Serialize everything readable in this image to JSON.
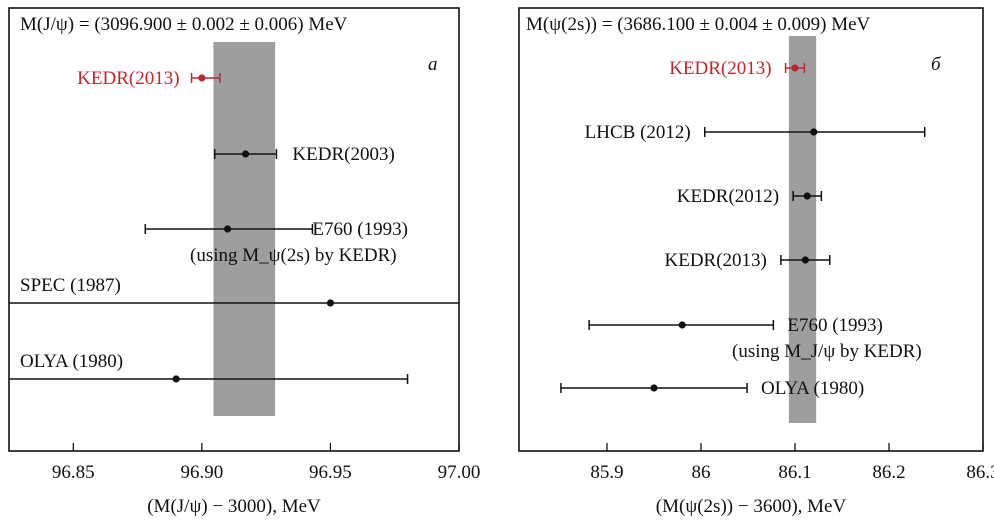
{
  "chart_data": [
    {
      "type": "scatter",
      "panel_letter": "a",
      "title": "M(J/ψ) = (3096.900 ± 0.002 ± 0.006) MeV",
      "xlabel": "(M(J/ψ) − 3000), MeV",
      "ylabel": "",
      "xlim": [
        96.825,
        97.0
      ],
      "ticks": [
        {
          "v": 96.85,
          "label": "96.85"
        },
        {
          "v": 96.9,
          "label": "96.90"
        },
        {
          "v": 96.95,
          "label": "96.95"
        },
        {
          "v": 97.0,
          "label": "97.00"
        }
      ],
      "band": {
        "from": 96.9045,
        "to": 96.9285
      },
      "points": [
        {
          "label": "KEDR(2013)",
          "x": 96.9,
          "err": [
            96.896,
            96.907
          ],
          "color": "#c0262d",
          "label_side": "left"
        },
        {
          "label": "KEDR(2003)",
          "x": 96.917,
          "err": [
            96.905,
            96.929
          ],
          "color": "#111111",
          "label_side": "right"
        },
        {
          "label": "E760 (1993)",
          "note": "(using M_ψ(2s) by KEDR)",
          "x": 96.91,
          "err": [
            96.878,
            96.943
          ],
          "color": "#111111",
          "label_side": "right"
        },
        {
          "label": "SPEC (1987)",
          "x": 96.95,
          "err": [
            96.825,
            97.0
          ],
          "color": "#111111",
          "label_side": "above-left"
        },
        {
          "label": "OLYA (1980)",
          "x": 96.89,
          "err": [
            96.825,
            96.98
          ],
          "color": "#111111",
          "label_side": "above-left"
        }
      ]
    },
    {
      "type": "scatter",
      "panel_letter": "б",
      "title": "M(ψ(2s)) = (3686.100 ± 0.004 ± 0.009) MeV",
      "xlabel": "(M(ψ(2s)) − 3600), MeV",
      "ylabel": "",
      "xlim": [
        85.8,
        86.3
      ],
      "ticks": [
        {
          "v": 85.9,
          "label": "85.9"
        },
        {
          "v": 86.0,
          "label": "86"
        },
        {
          "v": 86.1,
          "label": "86.1"
        },
        {
          "v": 86.2,
          "label": "86.2"
        },
        {
          "v": 86.3,
          "label": "86.3"
        }
      ],
      "band": {
        "from": 86.0935,
        "to": 86.1225
      },
      "points": [
        {
          "label": "KEDR(2013)",
          "x": 86.1,
          "err": [
            86.09,
            86.11
          ],
          "color": "#c0262d",
          "label_side": "left"
        },
        {
          "label": "LHCB (2012)",
          "x": 86.12,
          "err": [
            86.004,
            86.238
          ],
          "color": "#111111",
          "label_side": "left"
        },
        {
          "label": "KEDR(2012)",
          "x": 86.113,
          "err": [
            86.098,
            86.128
          ],
          "color": "#111111",
          "label_side": "left"
        },
        {
          "label": "KEDR(2013)",
          "x": 86.111,
          "err": [
            86.085,
            86.137
          ],
          "color": "#111111",
          "label_side": "left"
        },
        {
          "label": "E760 (1993)",
          "note": "(using M_J/ψ by KEDR)",
          "x": 85.98,
          "err": [
            85.881,
            86.077
          ],
          "color": "#111111",
          "label_side": "right"
        },
        {
          "label": "OLYA (1980)",
          "x": 85.95,
          "err": [
            85.851,
            86.049
          ],
          "color": "#111111",
          "label_side": "right"
        }
      ]
    }
  ]
}
